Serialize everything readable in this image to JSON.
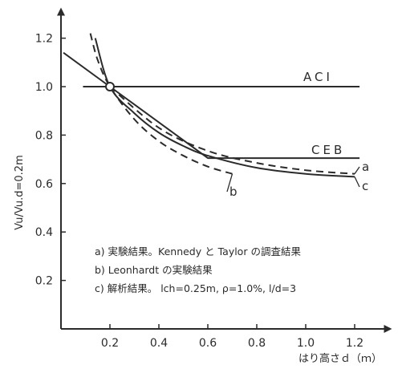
{
  "chart_data": {
    "type": "line",
    "x_axis": {
      "label": "はり高さｄ（ｍ）",
      "range": [
        0,
        1.3
      ],
      "ticks": [
        "0.2",
        "0.4",
        "0.6",
        "0.8",
        "1.0",
        "1.2"
      ]
    },
    "y_axis": {
      "label": "Vu/Vu.d=0.2m",
      "range": [
        0,
        1.28
      ],
      "ticks": [
        "0.2",
        "0.4",
        "0.6",
        "0.8",
        "1.0",
        "1.2"
      ]
    },
    "series": [
      {
        "name": "ACI",
        "style": "solid",
        "points": [
          [
            0.09,
            1.0
          ],
          [
            1.22,
            1.0
          ]
        ]
      },
      {
        "name": "CEB",
        "style": "solid",
        "points": [
          [
            0.01,
            1.14
          ],
          [
            0.2,
            1.0
          ],
          [
            0.6,
            0.705
          ],
          [
            1.22,
            0.705
          ]
        ]
      },
      {
        "name": "a",
        "style": "dashed",
        "points": [
          [
            0.2,
            1.0
          ],
          [
            0.4,
            0.83
          ],
          [
            0.6,
            0.735
          ],
          [
            0.8,
            0.685
          ],
          [
            1.0,
            0.655
          ],
          [
            1.2,
            0.64
          ]
        ]
      },
      {
        "name": "b",
        "style": "dashed",
        "points": [
          [
            0.12,
            1.22
          ],
          [
            0.15,
            1.11
          ],
          [
            0.2,
            1.0
          ],
          [
            0.3,
            0.865
          ],
          [
            0.4,
            0.775
          ],
          [
            0.5,
            0.715
          ],
          [
            0.6,
            0.67
          ],
          [
            0.7,
            0.64
          ]
        ]
      },
      {
        "name": "c",
        "style": "solid",
        "points": [
          [
            0.14,
            1.2
          ],
          [
            0.2,
            1.0
          ],
          [
            0.3,
            0.89
          ],
          [
            0.4,
            0.81
          ],
          [
            0.5,
            0.755
          ],
          [
            0.6,
            0.715
          ],
          [
            0.8,
            0.665
          ],
          [
            1.0,
            0.64
          ],
          [
            1.2,
            0.628
          ]
        ]
      }
    ],
    "annotations": {
      "line_labels": {
        "aci": "ACI",
        "ceb": "CEB"
      },
      "curve_tags": {
        "a": "a",
        "b": "b",
        "c": "c"
      },
      "notes": [
        "a) 実験結果。Kennedy と Taylor の調査結果",
        "b) Leonhardt の実験結果",
        "c) 解析結果。 lch=0.25m, ρ=1.0%, l/d=3"
      ]
    },
    "grid": false,
    "colors": {
      "ink": "#2b2b2b"
    }
  }
}
